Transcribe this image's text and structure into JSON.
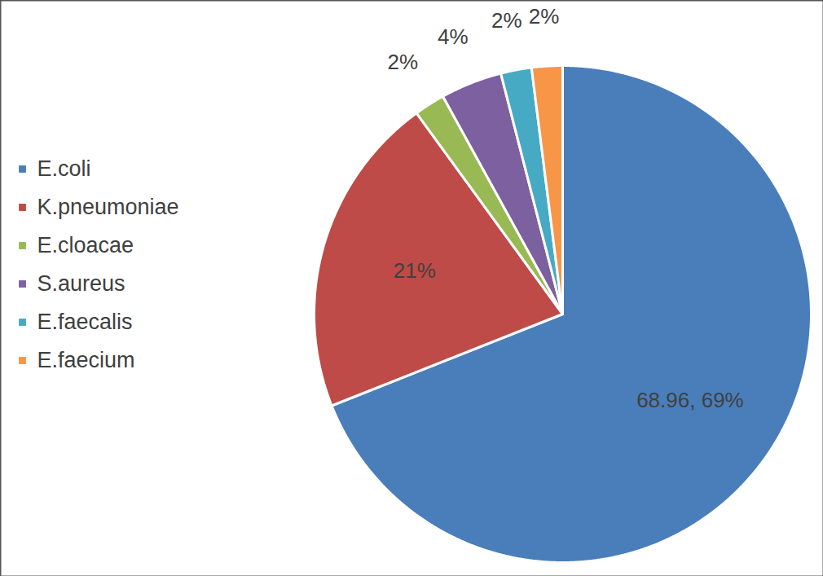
{
  "chart_data": {
    "type": "pie",
    "categories": [
      "E.coli",
      "K.pneumoniae",
      "E.cloacae",
      "S.aureus",
      "E.faecalis",
      "E.faecium"
    ],
    "values": [
      68.96,
      21,
      2,
      4,
      2,
      2
    ],
    "value_labels": [
      "68.96, 69%",
      "21%",
      "2%",
      "4%",
      "2%",
      "2%"
    ],
    "colors": [
      "#4a7ebb",
      "#be4b48",
      "#98b954",
      "#7d60a0",
      "#46aac5",
      "#f79646"
    ],
    "legend": "left",
    "data_labels": true
  }
}
